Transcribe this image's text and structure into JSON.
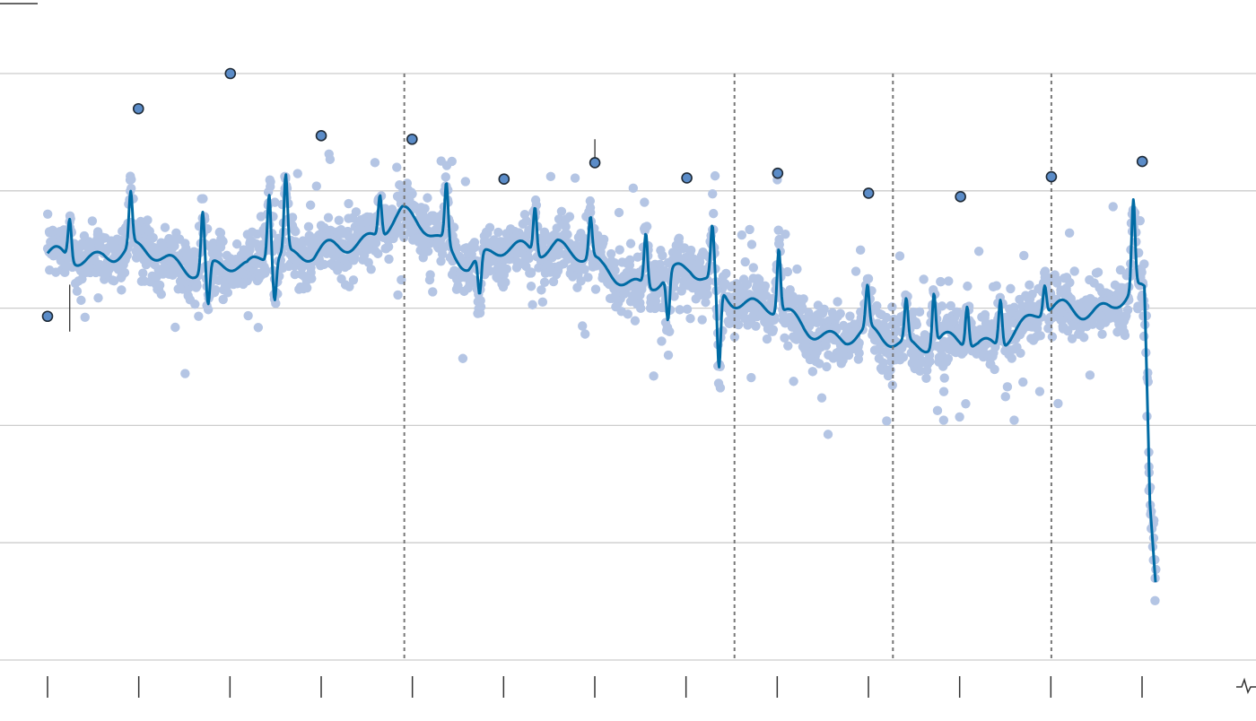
{
  "chart_data": {
    "type": "scatter",
    "title": "",
    "xlabel": "",
    "ylabel": "",
    "xlim": [
      0,
      1
    ],
    "ylim": [
      0,
      5
    ],
    "yticks": [
      0,
      1,
      2,
      3,
      4,
      5
    ],
    "ytick_labels": [],
    "xtick_labels": [],
    "grid": "horizontal",
    "legend": "none",
    "vertical_reference_lines": [
      0.322,
      0.62,
      0.763,
      0.906
    ],
    "point_seed": 12345,
    "colors": {
      "points": "#b4c5e4",
      "trend": "#006ba4",
      "markers": "#5b8cc8",
      "marker_stroke": "#1f2a36",
      "grid": "#cccccc",
      "refline": "#777777",
      "axis": "#333333"
    },
    "series": [
      {
        "kind": "points-band",
        "knots_x": [
          0.0,
          0.02,
          0.05,
          0.08,
          0.11,
          0.14,
          0.18,
          0.2,
          0.24,
          0.28,
          0.32,
          0.36,
          0.38,
          0.42,
          0.46,
          0.5,
          0.54,
          0.58,
          0.6,
          0.64,
          0.68,
          0.72,
          0.75,
          0.78,
          0.8,
          0.84,
          0.88,
          0.9,
          0.92,
          0.96,
          0.98,
          0.99,
          0.995,
          1.0
        ],
        "knots_y": [
          3.42,
          3.42,
          3.48,
          3.46,
          3.42,
          3.34,
          3.32,
          3.52,
          3.42,
          3.58,
          3.78,
          3.55,
          3.4,
          3.48,
          3.57,
          3.3,
          3.22,
          3.3,
          3.22,
          3.0,
          2.88,
          2.73,
          2.75,
          2.72,
          2.7,
          2.68,
          2.85,
          2.95,
          3.0,
          3.02,
          3.1,
          3.1,
          1.3,
          0.7
        ],
        "spikes": [
          [
            0.02,
            0.35
          ],
          [
            0.075,
            0.45
          ],
          [
            0.14,
            0.5
          ],
          [
            0.145,
            -0.35
          ],
          [
            0.2,
            0.55
          ],
          [
            0.205,
            -0.35
          ],
          [
            0.215,
            0.65
          ],
          [
            0.3,
            0.35
          ],
          [
            0.36,
            0.5
          ],
          [
            0.39,
            -0.35
          ],
          [
            0.44,
            0.4
          ],
          [
            0.49,
            0.35
          ],
          [
            0.54,
            0.45
          ],
          [
            0.56,
            -0.4
          ],
          [
            0.6,
            0.45
          ],
          [
            0.606,
            -0.7
          ],
          [
            0.66,
            0.55
          ],
          [
            0.74,
            0.35
          ],
          [
            0.775,
            0.35
          ],
          [
            0.8,
            0.45
          ],
          [
            0.83,
            0.35
          ],
          [
            0.86,
            0.4
          ],
          [
            0.9,
            0.25
          ],
          [
            0.98,
            0.75
          ]
        ]
      },
      {
        "kind": "highlighted-points",
        "x": [
          0.0,
          0.082,
          0.165,
          0.247,
          0.329,
          0.412,
          0.494,
          0.577,
          0.659,
          0.741,
          0.824,
          0.906,
          0.988
        ],
        "y": [
          2.93,
          4.7,
          5.0,
          4.47,
          4.44,
          4.1,
          4.24,
          4.11,
          4.15,
          3.98,
          3.95,
          4.12,
          4.25
        ]
      }
    ],
    "error_bars": [
      {
        "x": 0.02,
        "y_low": 2.8,
        "y_high": 3.2
      },
      {
        "x": 0.494,
        "y_low": 4.24,
        "y_high": 4.44
      }
    ]
  }
}
